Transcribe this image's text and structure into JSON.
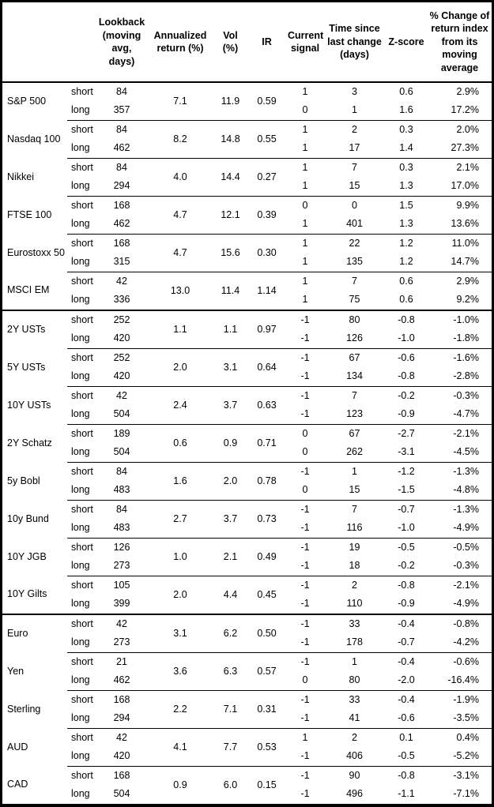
{
  "chart_data": {
    "type": "table",
    "headers": {
      "lookback": "Lookback (moving avg, days)",
      "annualized_return": "Annualized return (%)",
      "vol": "Vol (%)",
      "ir": "IR",
      "current_signal": "Current signal",
      "time_since": "Time since last change (days)",
      "z_score": "Z-score",
      "pct_change": "% Change of return index from its moving average"
    },
    "leg_labels": [
      "short",
      "long"
    ],
    "sections": [
      {
        "groups": [
          {
            "asset": "S&P 500",
            "lookback": [
              "84",
              "357"
            ],
            "annualized_return": "7.1",
            "vol": "11.9",
            "ir": "0.59",
            "signal": [
              "1",
              "0"
            ],
            "time_since": [
              "3",
              "1"
            ],
            "z_score": [
              "0.6",
              "1.6"
            ],
            "pct_change": [
              "2.9%",
              "17.2%"
            ]
          },
          {
            "asset": "Nasdaq 100",
            "lookback": [
              "84",
              "462"
            ],
            "annualized_return": "8.2",
            "vol": "14.8",
            "ir": "0.55",
            "signal": [
              "1",
              "1"
            ],
            "time_since": [
              "2",
              "17"
            ],
            "z_score": [
              "0.3",
              "1.4"
            ],
            "pct_change": [
              "2.0%",
              "27.3%"
            ]
          },
          {
            "asset": "Nikkei",
            "lookback": [
              "84",
              "294"
            ],
            "annualized_return": "4.0",
            "vol": "14.4",
            "ir": "0.27",
            "signal": [
              "1",
              "1"
            ],
            "time_since": [
              "7",
              "15"
            ],
            "z_score": [
              "0.3",
              "1.3"
            ],
            "pct_change": [
              "2.1%",
              "17.0%"
            ]
          },
          {
            "asset": "FTSE 100",
            "lookback": [
              "168",
              "462"
            ],
            "annualized_return": "4.7",
            "vol": "12.1",
            "ir": "0.39",
            "signal": [
              "0",
              "1"
            ],
            "time_since": [
              "0",
              "401"
            ],
            "z_score": [
              "1.5",
              "1.3"
            ],
            "pct_change": [
              "9.9%",
              "13.6%"
            ]
          },
          {
            "asset": "Eurostoxx 50",
            "lookback": [
              "168",
              "315"
            ],
            "annualized_return": "4.7",
            "vol": "15.6",
            "ir": "0.30",
            "signal": [
              "1",
              "1"
            ],
            "time_since": [
              "22",
              "135"
            ],
            "z_score": [
              "1.2",
              "1.2"
            ],
            "pct_change": [
              "11.0%",
              "14.7%"
            ]
          },
          {
            "asset": "MSCI EM",
            "lookback": [
              "42",
              "336"
            ],
            "annualized_return": "13.0",
            "vol": "11.4",
            "ir": "1.14",
            "signal": [
              "1",
              "1"
            ],
            "time_since": [
              "7",
              "75"
            ],
            "z_score": [
              "0.6",
              "0.6"
            ],
            "pct_change": [
              "2.9%",
              "9.2%"
            ]
          }
        ]
      },
      {
        "groups": [
          {
            "asset": "2Y USTs",
            "lookback": [
              "252",
              "420"
            ],
            "annualized_return": "1.1",
            "vol": "1.1",
            "ir": "0.97",
            "signal": [
              "-1",
              "-1"
            ],
            "time_since": [
              "80",
              "126"
            ],
            "z_score": [
              "-0.8",
              "-1.0"
            ],
            "pct_change": [
              "-1.0%",
              "-1.8%"
            ]
          },
          {
            "asset": "5Y USTs",
            "lookback": [
              "252",
              "420"
            ],
            "annualized_return": "2.0",
            "vol": "3.1",
            "ir": "0.64",
            "signal": [
              "-1",
              "-1"
            ],
            "time_since": [
              "67",
              "134"
            ],
            "z_score": [
              "-0.6",
              "-0.8"
            ],
            "pct_change": [
              "-1.6%",
              "-2.8%"
            ]
          },
          {
            "asset": "10Y USTs",
            "lookback": [
              "42",
              "504"
            ],
            "annualized_return": "2.4",
            "vol": "3.7",
            "ir": "0.63",
            "signal": [
              "-1",
              "-1"
            ],
            "time_since": [
              "7",
              "123"
            ],
            "z_score": [
              "-0.2",
              "-0.9"
            ],
            "pct_change": [
              "-0.3%",
              "-4.7%"
            ]
          },
          {
            "asset": "2Y Schatz",
            "lookback": [
              "189",
              "504"
            ],
            "annualized_return": "0.6",
            "vol": "0.9",
            "ir": "0.71",
            "signal": [
              "0",
              "0"
            ],
            "time_since": [
              "67",
              "262"
            ],
            "z_score": [
              "-2.7",
              "-3.1"
            ],
            "pct_change": [
              "-2.1%",
              "-4.5%"
            ]
          },
          {
            "asset": "5y Bobl",
            "lookback": [
              "84",
              "483"
            ],
            "annualized_return": "1.6",
            "vol": "2.0",
            "ir": "0.78",
            "signal": [
              "-1",
              "0"
            ],
            "time_since": [
              "1",
              "15"
            ],
            "z_score": [
              "-1.2",
              "-1.5"
            ],
            "pct_change": [
              "-1.3%",
              "-4.8%"
            ]
          },
          {
            "asset": "10y Bund",
            "lookback": [
              "84",
              "483"
            ],
            "annualized_return": "2.7",
            "vol": "3.7",
            "ir": "0.73",
            "signal": [
              "-1",
              "-1"
            ],
            "time_since": [
              "7",
              "116"
            ],
            "z_score": [
              "-0.7",
              "-1.0"
            ],
            "pct_change": [
              "-1.3%",
              "-4.9%"
            ]
          },
          {
            "asset": "10Y JGB",
            "lookback": [
              "126",
              "273"
            ],
            "annualized_return": "1.0",
            "vol": "2.1",
            "ir": "0.49",
            "signal": [
              "-1",
              "-1"
            ],
            "time_since": [
              "19",
              "18"
            ],
            "z_score": [
              "-0.5",
              "-0.2"
            ],
            "pct_change": [
              "-0.5%",
              "-0.3%"
            ]
          },
          {
            "asset": "10Y Gilts",
            "lookback": [
              "105",
              "399"
            ],
            "annualized_return": "2.0",
            "vol": "4.4",
            "ir": "0.45",
            "signal": [
              "-1",
              "-1"
            ],
            "time_since": [
              "2",
              "110"
            ],
            "z_score": [
              "-0.8",
              "-0.9"
            ],
            "pct_change": [
              "-2.1%",
              "-4.9%"
            ]
          }
        ]
      },
      {
        "groups": [
          {
            "asset": "Euro",
            "lookback": [
              "42",
              "273"
            ],
            "annualized_return": "3.1",
            "vol": "6.2",
            "ir": "0.50",
            "signal": [
              "-1",
              "-1"
            ],
            "time_since": [
              "33",
              "178"
            ],
            "z_score": [
              "-0.4",
              "-0.7"
            ],
            "pct_change": [
              "-0.8%",
              "-4.2%"
            ]
          },
          {
            "asset": "Yen",
            "lookback": [
              "21",
              "462"
            ],
            "annualized_return": "3.6",
            "vol": "6.3",
            "ir": "0.57",
            "signal": [
              "-1",
              "0"
            ],
            "time_since": [
              "1",
              "80"
            ],
            "z_score": [
              "-0.4",
              "-2.0"
            ],
            "pct_change": [
              "-0.6%",
              "-16.4%"
            ]
          },
          {
            "asset": "Sterling",
            "lookback": [
              "168",
              "294"
            ],
            "annualized_return": "2.2",
            "vol": "7.1",
            "ir": "0.31",
            "signal": [
              "-1",
              "-1"
            ],
            "time_since": [
              "33",
              "41"
            ],
            "z_score": [
              "-0.4",
              "-0.6"
            ],
            "pct_change": [
              "-1.9%",
              "-3.5%"
            ]
          },
          {
            "asset": "AUD",
            "lookback": [
              "42",
              "420"
            ],
            "annualized_return": "4.1",
            "vol": "7.7",
            "ir": "0.53",
            "signal": [
              "1",
              "-1"
            ],
            "time_since": [
              "2",
              "406"
            ],
            "z_score": [
              "0.1",
              "-0.5"
            ],
            "pct_change": [
              "0.4%",
              "-5.2%"
            ]
          },
          {
            "asset": "CAD",
            "lookback": [
              "168",
              "504"
            ],
            "annualized_return": "0.9",
            "vol": "6.0",
            "ir": "0.15",
            "signal": [
              "-1",
              "-1"
            ],
            "time_since": [
              "90",
              "496"
            ],
            "z_score": [
              "-0.8",
              "-1.1"
            ],
            "pct_change": [
              "-3.1%",
              "-7.1%"
            ]
          }
        ]
      }
    ]
  }
}
